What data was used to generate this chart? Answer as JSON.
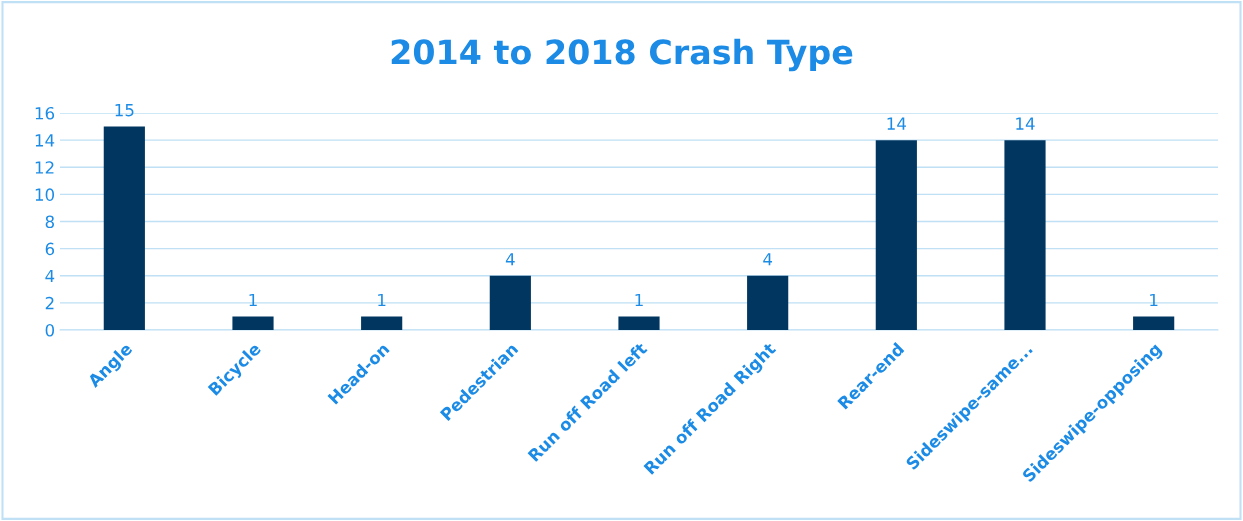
{
  "chart_data": {
    "type": "bar",
    "title": "2014 to 2018 Crash Type",
    "categories": [
      "Angle",
      "Bicycle",
      "Head-on",
      "Pedestrian",
      "Run off Road left",
      "Run off Road Right",
      "Rear-end",
      "Sideswipe-same...",
      "Sideswipe-opposing"
    ],
    "values": [
      15,
      1,
      1,
      4,
      1,
      4,
      14,
      14,
      1
    ],
    "color": "#003660",
    "ylim": [
      0,
      16
    ],
    "yticks": [
      0,
      2,
      4,
      6,
      8,
      10,
      12,
      14,
      16
    ],
    "grid": "y",
    "data_labels": true
  }
}
